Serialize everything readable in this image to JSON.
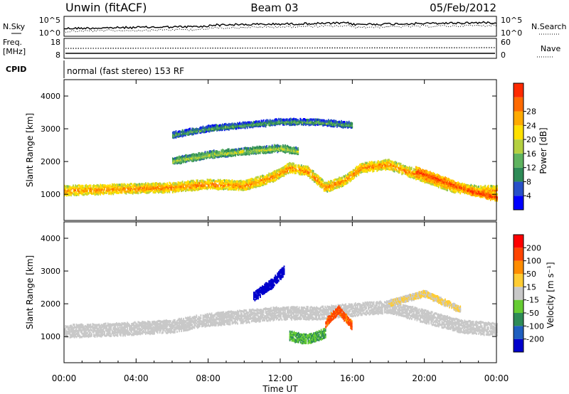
{
  "header": {
    "station": "Unwin (fitACF)",
    "beam": "Beam 03",
    "date": "05/Feb/2012"
  },
  "noise_panel": {
    "left_label": "N.Sky",
    "right_label": "N.Search",
    "left_ticks": [
      "10^5",
      "10^0"
    ],
    "right_ticks": [
      "10^5",
      "10^0"
    ]
  },
  "freq_panel": {
    "left_label_1": "Freq.",
    "left_label_2": "[MHz]",
    "right_label": "Nave",
    "left_ticks": [
      "18",
      "8"
    ],
    "right_ticks": [
      "60",
      "0"
    ]
  },
  "cpid": {
    "label": "CPID",
    "text": "normal (fast stereo) 153 RF"
  },
  "x_axis": {
    "label": "Time UT",
    "ticks": [
      "00:00",
      "04:00",
      "08:00",
      "12:00",
      "16:00",
      "20:00",
      "00:00"
    ],
    "range_hours": [
      0,
      24
    ]
  },
  "power_panel": {
    "ylabel": "Slant Range [km]",
    "yticks": [
      "1000",
      "2000",
      "3000",
      "4000"
    ],
    "colorbar_label": "Power [dB]",
    "colorbar_ticks": [
      "4",
      "8",
      "12",
      "16",
      "20",
      "24",
      "28"
    ]
  },
  "velocity_panel": {
    "ylabel": "Slant Range [km]",
    "yticks": [
      "1000",
      "2000",
      "3000",
      "4000"
    ],
    "colorbar_label": "Velocity [m s⁻¹]",
    "colorbar_ticks": [
      "200",
      "100",
      "50",
      "15",
      "-15",
      "-50",
      "-100",
      "-200"
    ]
  },
  "colors": {
    "power_scale": [
      "#0000ff",
      "#2850c8",
      "#2e8b57",
      "#5fb35f",
      "#b4d040",
      "#ffe000",
      "#ffaa00",
      "#ff6a00",
      "#ff2a00"
    ],
    "velocity_scale": [
      "#0000cc",
      "#1f5fbf",
      "#2e8b57",
      "#66cc33",
      "#c8c8c8",
      "#ffcc33",
      "#ff8c00",
      "#ff4400",
      "#ff0000"
    ]
  },
  "chart_data": [
    {
      "type": "heatmap",
      "name_panel": "power",
      "xlabel": "Time UT",
      "ylabel": "Slant Range [km]",
      "xlim": [
        0,
        24
      ],
      "ylim": [
        200,
        4500
      ],
      "clim": [
        0,
        30
      ],
      "colorbar_label": "Power [dB]",
      "bands": [
        {
          "t": [
            0,
            3,
            6,
            8,
            10,
            11.5,
            12.5,
            13.5,
            14.5,
            15.5,
            16.5,
            18,
            19,
            20,
            21.5,
            23,
            24
          ],
          "r": [
            1100,
            1150,
            1200,
            1300,
            1250,
            1500,
            1800,
            1700,
            1200,
            1400,
            1800,
            1900,
            1700,
            1500,
            1200,
            1100,
            1100
          ],
          "value": 20,
          "width_km": 260
        },
        {
          "t": [
            6,
            8,
            10,
            12,
            13
          ],
          "r": [
            2000,
            2200,
            2300,
            2400,
            2300
          ],
          "value": 12,
          "width_km": 180
        },
        {
          "t": [
            6,
            8,
            10,
            12,
            14,
            16
          ],
          "r": [
            2800,
            3000,
            3100,
            3200,
            3200,
            3100
          ],
          "value": 8,
          "width_km": 150
        },
        {
          "t": [
            19.5,
            21,
            22.5,
            24
          ],
          "r": [
            1700,
            1400,
            1100,
            900
          ],
          "value": 24,
          "width_km": 220
        }
      ]
    },
    {
      "type": "heatmap",
      "name_panel": "velocity",
      "xlabel": "Time UT",
      "ylabel": "Slant Range [km]",
      "xlim": [
        0,
        24
      ],
      "ylim": [
        200,
        4500
      ],
      "clim": [
        -250,
        250
      ],
      "colorbar_label": "Velocity [m s⁻¹]",
      "bands": [
        {
          "t": [
            0,
            3,
            6,
            8,
            10,
            12,
            14,
            16,
            18,
            20,
            22,
            24
          ],
          "r": [
            1150,
            1200,
            1300,
            1500,
            1600,
            1700,
            1700,
            1800,
            1900,
            1600,
            1300,
            1200
          ],
          "value": 0,
          "width_km": 350
        },
        {
          "t": [
            10.5,
            11.5,
            12.2
          ],
          "r": [
            2200,
            2600,
            3000
          ],
          "value": -220,
          "width_km": 260
        },
        {
          "t": [
            12.5,
            13.5,
            14.5
          ],
          "r": [
            1000,
            900,
            1100
          ],
          "value": -80,
          "width_km": 260
        },
        {
          "t": [
            14.5,
            15.2,
            16
          ],
          "r": [
            1400,
            1800,
            1300
          ],
          "value": 150,
          "width_km": 220
        },
        {
          "t": [
            18,
            20,
            22
          ],
          "r": [
            2000,
            2300,
            1800
          ],
          "value": 30,
          "width_km": 160
        }
      ]
    }
  ]
}
